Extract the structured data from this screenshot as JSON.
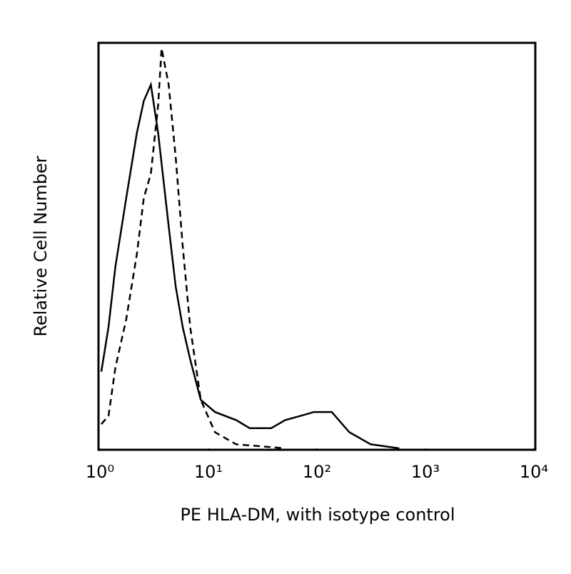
{
  "chart_data": {
    "type": "line",
    "xlabel": "PE HLA-DM, with isotype control",
    "ylabel": "Relative Cell Number",
    "xscale": "log",
    "xlim": [
      1,
      10000
    ],
    "xticks": [
      {
        "value": 1,
        "label": "10⁰"
      },
      {
        "value": 10,
        "label": "10¹"
      },
      {
        "value": 100,
        "label": "10²"
      },
      {
        "value": 1000,
        "label": "10³"
      },
      {
        "value": 10000,
        "label": "10⁴"
      }
    ],
    "ylim": [
      0,
      100
    ],
    "grid": false,
    "series": [
      {
        "color": "#000000",
        "dashed": false,
        "x": [
          1.03,
          1.2,
          1.39,
          1.75,
          2.19,
          2.54,
          2.95,
          3.44,
          4.3,
          5.0,
          5.8,
          6.8,
          8.5,
          11.5,
          18,
          24,
          38,
          51,
          70,
          94,
          137,
          199,
          313,
          574
        ],
        "values": [
          19,
          30,
          45,
          62,
          78,
          86,
          90,
          78,
          55,
          40,
          30,
          22,
          12,
          9,
          7,
          5,
          5,
          7,
          8,
          9,
          9,
          4,
          1,
          0
        ]
      },
      {
        "color": "#000000",
        "dashed": true,
        "x": [
          1.03,
          1.2,
          1.39,
          1.75,
          2.19,
          2.54,
          2.95,
          3.44,
          3.7,
          4.3,
          5.0,
          5.8,
          6.8,
          8.5,
          11.5,
          18,
          51
        ],
        "values": [
          6,
          8,
          20,
          32,
          48,
          62,
          68,
          85,
          99,
          90,
          72,
          50,
          30,
          12,
          4,
          1,
          0
        ]
      }
    ]
  }
}
